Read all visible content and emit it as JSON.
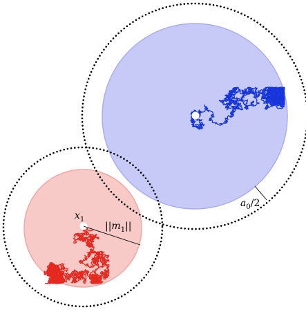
{
  "labels": {
    "point_label": "x",
    "point_sub": "1",
    "norm_label": "||m",
    "norm_sub": "1",
    "norm_close": "||",
    "a_label": "a",
    "a_sub": "0",
    "a_tail": "/2"
  },
  "colors": {
    "background": "#ffffff",
    "red_fill": "#f7c9c7",
    "red_stroke": "#f0a8a4",
    "red_walk": "#e42a20",
    "blue_fill": "#c7caf6",
    "blue_stroke": "#a9adee",
    "blue_walk": "#1636dc",
    "dotted": "#000000",
    "start_point": "#ffffff"
  },
  "icons": {
    "red_start": "start-point-dot",
    "blue_start": "start-point-dot"
  }
}
